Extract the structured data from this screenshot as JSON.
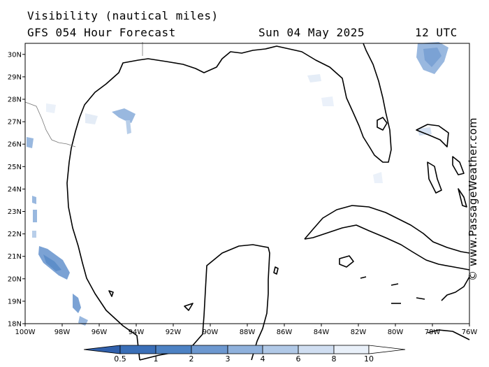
{
  "header": {
    "variable": "Visibility (nautical miles)",
    "model": "GFS 054 Hour Forecast",
    "date": "Sun 04 May 2025",
    "time": "12 UTC"
  },
  "credit": "© www.PassageWeather.com",
  "map": {
    "lon_range": [
      -100,
      -76
    ],
    "lat_range": [
      18,
      30.5
    ],
    "x_ticks": [
      "100W",
      "98W",
      "96W",
      "94W",
      "92W",
      "90W",
      "88W",
      "86W",
      "84W",
      "82W",
      "80W",
      "78W",
      "76W"
    ],
    "y_ticks": [
      "30N",
      "29N",
      "28N",
      "27N",
      "26N",
      "25N",
      "24N",
      "23N",
      "22N",
      "21N",
      "20N",
      "19N",
      "18N"
    ],
    "x_tick_values": [
      -100,
      -98,
      -96,
      -94,
      -92,
      -90,
      -88,
      -86,
      -84,
      -82,
      -80,
      -78,
      -76
    ],
    "y_tick_values": [
      30,
      29,
      28,
      27,
      26,
      25,
      24,
      23,
      22,
      21,
      20,
      19,
      18
    ]
  },
  "colorbar": {
    "labels": [
      "0.5",
      "1",
      "2",
      "3",
      "4",
      "6",
      "8",
      "10"
    ],
    "colors": [
      "#3a6fb8",
      "#4d82c4",
      "#6d98d0",
      "#8fb1dc",
      "#b1c9e7",
      "#d0def1",
      "#e9f0f9",
      "#ffffff"
    ]
  }
}
